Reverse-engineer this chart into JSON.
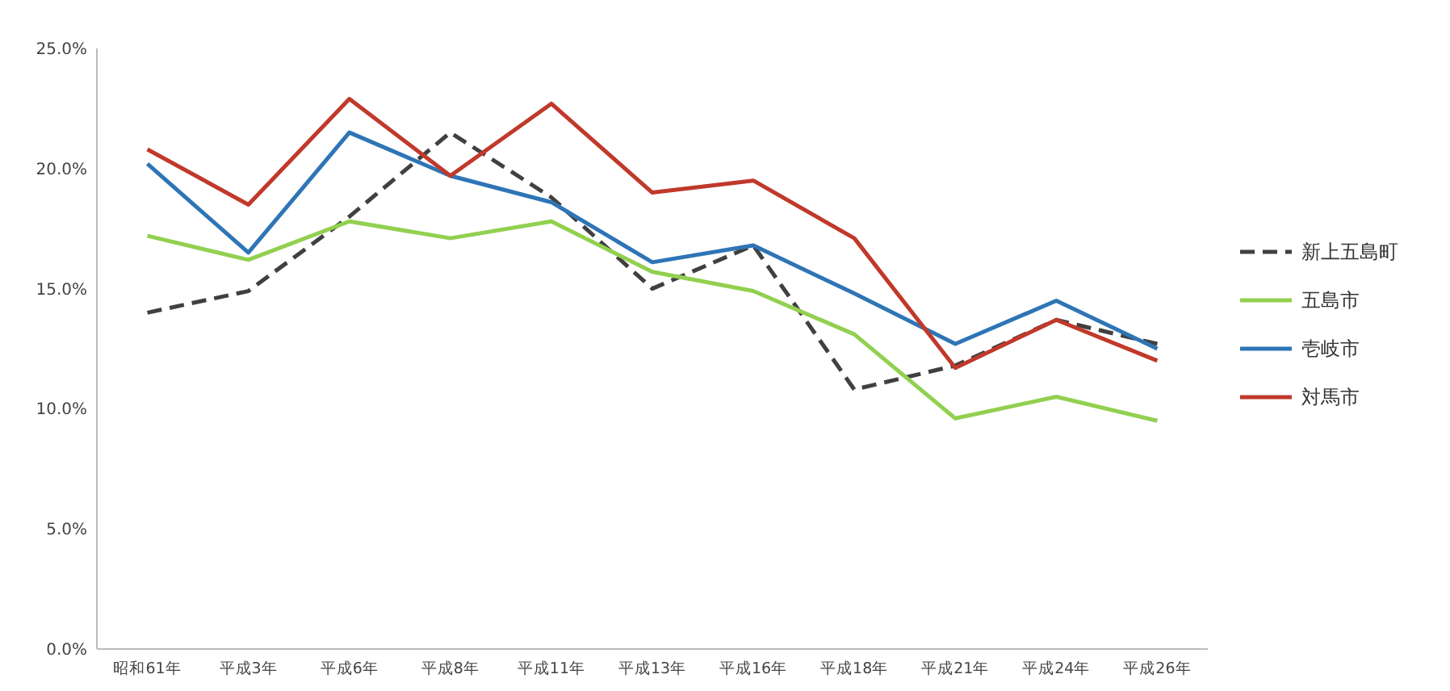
{
  "chart_data": {
    "type": "line",
    "categories": [
      "昭和61年",
      "平成3年",
      "平成6年",
      "平成8年",
      "平成11年",
      "平成13年",
      "平成16年",
      "平成18年",
      "平成21年",
      "平成24年",
      "平成26年"
    ],
    "ylim": [
      0,
      25
    ],
    "yticks": [
      {
        "value": 0,
        "label": "0.0%"
      },
      {
        "value": 5,
        "label": "5.0%"
      },
      {
        "value": 10,
        "label": "10.0%"
      },
      {
        "value": 15,
        "label": "15.0%"
      },
      {
        "value": 20,
        "label": "20.0%"
      },
      {
        "value": 25,
        "label": "25.0%"
      }
    ],
    "grid": false,
    "legend": "right",
    "marker": "none",
    "series": [
      {
        "name": "新上五島町",
        "color": "#404040",
        "line_style": "dashed",
        "values": [
          14.0,
          14.9,
          18.0,
          21.5,
          18.8,
          15.0,
          16.8,
          10.8,
          11.8,
          13.7,
          12.7
        ]
      },
      {
        "name": "五島市",
        "color": "#92d050",
        "line_style": "solid",
        "values": [
          17.2,
          16.2,
          17.8,
          17.1,
          17.8,
          15.7,
          14.9,
          13.1,
          9.6,
          10.5,
          9.5
        ]
      },
      {
        "name": "壱岐市",
        "color": "#2e75b6",
        "line_style": "solid",
        "values": [
          20.2,
          16.5,
          21.5,
          19.7,
          18.6,
          16.1,
          16.8,
          14.8,
          12.7,
          14.5,
          12.5
        ]
      },
      {
        "name": "対馬市",
        "color": "#c0392b",
        "line_style": "solid",
        "values": [
          20.8,
          18.5,
          22.9,
          19.7,
          22.7,
          19.0,
          19.5,
          17.1,
          11.7,
          13.7,
          12.0
        ]
      }
    ]
  }
}
